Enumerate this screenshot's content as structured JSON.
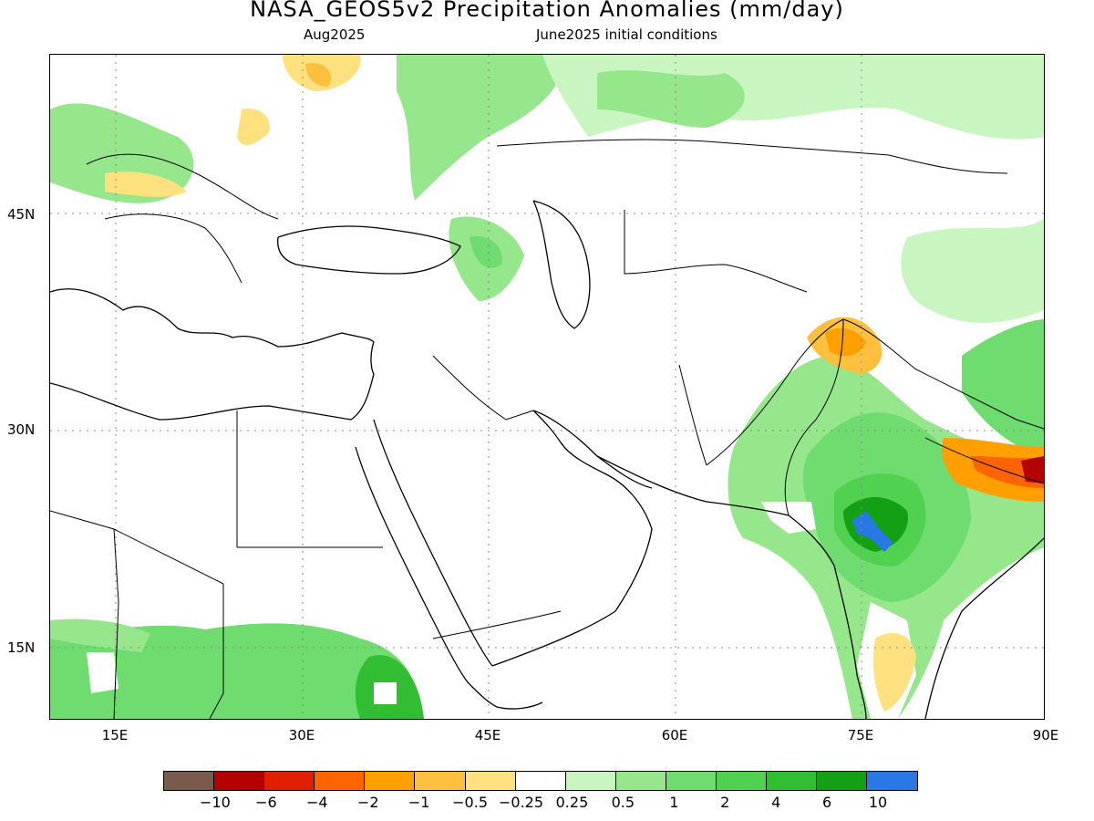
{
  "title": "NASA_GEOS5v2 Precipitation Anomalies (mm/day)",
  "subtitle_left": "Aug2025",
  "subtitle_right": "June2025 initial conditions",
  "map": {
    "lon_range": [
      10,
      90
    ],
    "lat_range": [
      10,
      56
    ],
    "lat_ticks": [
      "45N",
      "30N",
      "15N"
    ],
    "lon_ticks": [
      "15E",
      "30E",
      "45E",
      "60E",
      "75E",
      "90E"
    ]
  },
  "colorbar": {
    "colors": [
      "#7a5a4a",
      "#b40000",
      "#e01e00",
      "#ff6400",
      "#ff9f00",
      "#ffc040",
      "#ffe17f",
      "#ffffff",
      "#c8f5c0",
      "#96e68c",
      "#6edc6e",
      "#50d250",
      "#32be32",
      "#14a014",
      "#2878e6"
    ],
    "labels": [
      "−10",
      "−6",
      "−4",
      "−2",
      "−1",
      "−0.5",
      "−0.25",
      "0.25",
      "0.5",
      "1",
      "2",
      "4",
      "6",
      "10"
    ]
  }
}
